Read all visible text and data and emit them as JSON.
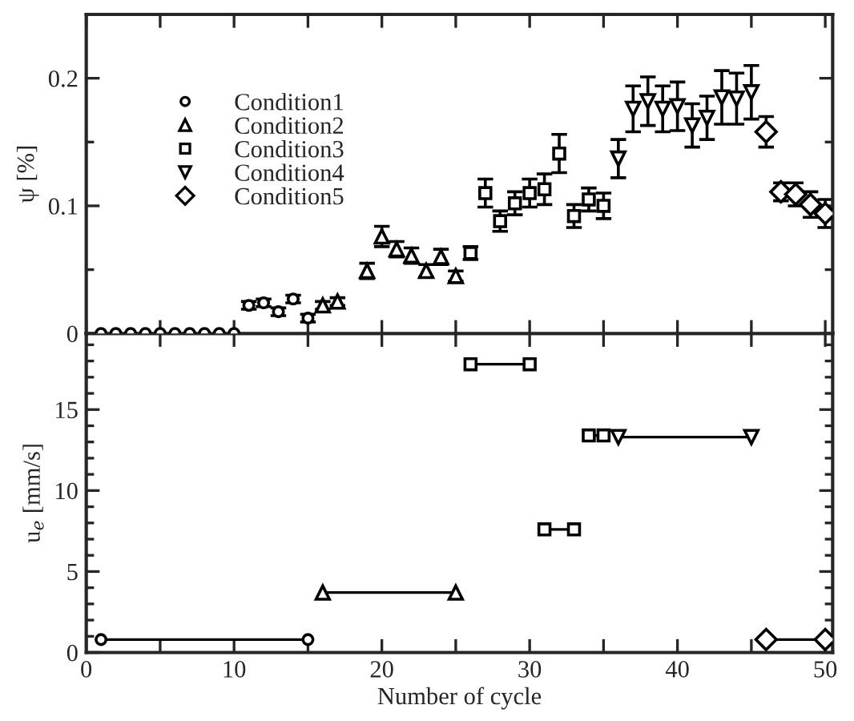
{
  "chart_data": [
    {
      "type": "scatter",
      "ylabel": "ψ [%]",
      "xlim": [
        0,
        50.5
      ],
      "ylim": [
        0,
        0.25
      ],
      "tick_labels": "y",
      "legend": "top left",
      "xticks": [
        0,
        {
          "value": 5,
          "label": null
        },
        10,
        {
          "value": 15,
          "label": null
        },
        20,
        {
          "value": 25,
          "label": null
        },
        30,
        {
          "value": 35,
          "label": null
        },
        40,
        {
          "value": 45,
          "label": null
        },
        50
      ],
      "yticks": [
        0,
        {
          "value": 0.05,
          "label": null
        },
        0.1,
        {
          "value": 0.15,
          "label": null
        },
        0.2
      ],
      "series": [
        {
          "name": "Condition1",
          "color": "#000000",
          "marker": "circle",
          "x": [
            1,
            2,
            3,
            4,
            5,
            6,
            7,
            8,
            9,
            10,
            11,
            12,
            13,
            14,
            15
          ],
          "values": [
            0,
            0,
            0,
            0,
            0,
            0,
            0,
            0,
            0,
            0,
            0.022,
            0.024,
            0.017,
            0.027,
            0.012
          ],
          "errors": [
            null,
            null,
            null,
            null,
            null,
            null,
            null,
            null,
            null,
            null,
            0.003,
            0.003,
            0.003,
            0.003,
            0.003
          ]
        },
        {
          "name": "Condition2",
          "color": "#000000",
          "marker": "triangle",
          "x": [
            16,
            17,
            19,
            20,
            21,
            22,
            23,
            24,
            25
          ],
          "values": [
            0.022,
            0.025,
            0.049,
            0.076,
            0.066,
            0.061,
            0.049,
            0.06,
            0.045
          ],
          "errors": [
            0.003,
            0.003,
            0.006,
            0.008,
            0.006,
            0.006,
            0.005,
            0.006,
            0.004
          ]
        },
        {
          "name": "Condition3",
          "color": "#000000",
          "marker": "square",
          "x": [
            26,
            27,
            28,
            29,
            30,
            31,
            32,
            33,
            34,
            35
          ],
          "values": [
            0.063,
            0.11,
            0.088,
            0.102,
            0.11,
            0.113,
            0.141,
            0.092,
            0.105,
            0.1
          ],
          "errors": [
            0.005,
            0.011,
            0.008,
            0.009,
            0.011,
            0.012,
            0.015,
            0.009,
            0.009,
            0.01
          ]
        },
        {
          "name": "Condition4",
          "color": "#000000",
          "marker": "triangle_down",
          "x": [
            36,
            37,
            38,
            39,
            40,
            41,
            42,
            43,
            44,
            45
          ],
          "values": [
            0.137,
            0.176,
            0.182,
            0.176,
            0.178,
            0.163,
            0.169,
            0.185,
            0.184,
            0.189
          ],
          "errors": [
            0.015,
            0.018,
            0.019,
            0.018,
            0.019,
            0.017,
            0.017,
            0.021,
            0.02,
            0.021
          ]
        },
        {
          "name": "Condition5",
          "color": "#000000",
          "marker": "diamond",
          "x": [
            46,
            47,
            48,
            49,
            50
          ],
          "values": [
            0.158,
            0.111,
            0.109,
            0.101,
            0.094
          ],
          "errors": [
            0.012,
            0.007,
            0.009,
            0.01,
            0.011
          ]
        }
      ]
    },
    {
      "type": "line",
      "xlabel": "Number of cycle",
      "ylabel": "u$_{e}$ [mm/s]",
      "xlim": [
        0,
        50.5
      ],
      "ylim": [
        0,
        19.7
      ],
      "xticks": [
        0,
        {
          "value": 5,
          "label": null
        },
        10,
        {
          "value": 15,
          "label": null
        },
        20,
        {
          "value": 25,
          "label": null
        },
        30,
        {
          "value": 35,
          "label": null
        },
        40,
        {
          "value": 45,
          "label": null
        },
        50
      ],
      "yticks": [
        0,
        {
          "value": 1,
          "label": null
        },
        {
          "value": 2,
          "label": null
        },
        {
          "value": 3,
          "label": null
        },
        {
          "value": 4,
          "label": null
        },
        5,
        {
          "value": 6,
          "label": null
        },
        {
          "value": 7,
          "label": null
        },
        {
          "value": 8,
          "label": null
        },
        {
          "value": 9,
          "label": null
        },
        10,
        {
          "value": 11,
          "label": null
        },
        {
          "value": 12,
          "label": null
        },
        {
          "value": 13,
          "label": null
        },
        {
          "value": 14,
          "label": null
        },
        15,
        {
          "value": 16,
          "label": null
        },
        {
          "value": 17,
          "label": null
        },
        {
          "value": 18,
          "label": null
        },
        {
          "value": 19,
          "label": null
        }
      ],
      "series": [
        {
          "color": "#000000",
          "marker": "circle",
          "x": [
            1,
            15
          ],
          "values": [
            0.8,
            0.8
          ]
        },
        {
          "color": "#000000",
          "marker": "triangle",
          "x": [
            16,
            25
          ],
          "values": [
            3.7,
            3.7
          ]
        },
        {
          "color": "#000000",
          "marker": "square",
          "x": [
            26,
            30,
            30.5,
            31,
            33,
            33.5,
            34,
            35
          ],
          "values": [
            17.8,
            17.8,
            null,
            7.6,
            7.6,
            null,
            13.4,
            13.4
          ]
        },
        {
          "color": "#000000",
          "marker": "triangle_down",
          "x": [
            36,
            45
          ],
          "values": [
            13.3,
            13.3
          ]
        },
        {
          "color": "#000000",
          "marker": "diamond",
          "x": [
            46,
            50
          ],
          "values": [
            0.8,
            0.8
          ]
        }
      ]
    }
  ]
}
